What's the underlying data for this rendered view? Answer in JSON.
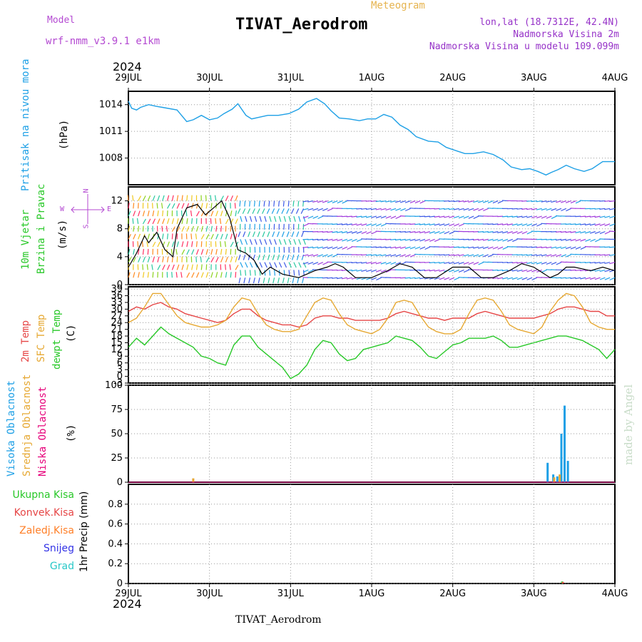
{
  "header": {
    "model_label": "Model",
    "model_name": "wrf-nmm_v3.9.1  e1km",
    "title": "TIVAT_Aerodrom",
    "meteogram_label": "Meteogram",
    "lonlat": "lon,lat (18.7312E, 42.4N)",
    "elevation": "Nadmorska Visina 2m",
    "model_elevation": "Nadmorska Visina u modelu 109.099m",
    "year_top": "2024",
    "year_bottom": "2024",
    "footer": "TIVAT_Aerodrom",
    "watermark": "made by Angel"
  },
  "colors": {
    "pressure": "#1ea0e6",
    "temp2m": "#e64646",
    "sfc_temp": "#e6a832",
    "dewpt": "#28c828",
    "wind_speed": "#000000",
    "gust_marker": "#e64646",
    "high_cloud": "#1ea0e6",
    "mid_cloud": "#e6a832",
    "low_cloud": "#e6007a",
    "model_label": "#b44ad2",
    "meteogram_label": "#e6b450",
    "info": "#9632c8",
    "total_precip": "#28c828",
    "conv_precip": "#e64646",
    "frozen_precip": "#ff7f27",
    "snow": "#3232e6",
    "hail": "#28c8c8"
  },
  "axis_labels": {
    "pressure_name": "Pritisak na nivou mora",
    "pressure_unit": "(hPa)",
    "wind_name1": "10m Vjetar",
    "wind_name2": "Brzina i Pravac",
    "wind_unit": "(m/s)",
    "compass_n": "N",
    "compass_s": "S",
    "compass_e": "E",
    "compass_w": "W",
    "temp_name1": "2m Temp",
    "temp_name2": "SFC Temp",
    "temp_name3": "dewpt Temp",
    "temp_unit": "(C)",
    "cloud_name1": "Visoka Oblacnost",
    "cloud_name2": "Srednja Oblacnost",
    "cloud_name3": "Niska Oblacnost",
    "cloud_unit": "(%)",
    "precip_unit": "1hr Precip (mm)",
    "precip_total": "Ukupna Kisa",
    "precip_conv": "Konvek.Kisa",
    "precip_frozen": "Zaledj.Kisa",
    "precip_snow": "Snijeg",
    "precip_hail": "Grad"
  },
  "chart_data": [
    {
      "type": "line",
      "panel": "pressure",
      "x_categories": [
        "29JUL",
        "30JUL",
        "31JUL",
        "1AUG",
        "2AUG",
        "3AUG",
        "4AUG"
      ],
      "ylim": [
        1005,
        1015.5
      ],
      "yticks": [
        1008,
        1011,
        1014
      ],
      "series": [
        {
          "name": "Pritisak na nivou mora",
          "x_days": [
            0,
            0.04,
            0.1,
            0.15,
            0.25,
            0.35,
            0.42,
            0.6,
            0.72,
            0.8,
            0.9,
            1.0,
            1.1,
            1.18,
            1.28,
            1.35,
            1.45,
            1.52,
            1.62,
            1.72,
            1.85,
            1.98,
            2.1,
            2.2,
            2.32,
            2.42,
            2.5,
            2.6,
            2.72,
            2.85,
            2.95,
            3.05,
            3.15,
            3.25,
            3.35,
            3.45,
            3.55,
            3.7,
            3.82,
            3.92,
            4.05,
            4.15,
            4.25,
            4.38,
            4.5,
            4.62,
            4.72,
            4.85,
            4.95,
            5.05,
            5.15,
            5.22,
            5.3,
            5.4,
            5.5,
            5.62,
            5.72,
            5.85,
            6.0
          ],
          "values": [
            1014.4,
            1013.6,
            1013.4,
            1013.7,
            1014.0,
            1013.8,
            1013.7,
            1013.4,
            1012.1,
            1012.3,
            1012.8,
            1012.3,
            1012.5,
            1013.0,
            1013.5,
            1014.1,
            1012.8,
            1012.4,
            1012.6,
            1012.8,
            1012.8,
            1013.0,
            1013.5,
            1014.3,
            1014.7,
            1014.1,
            1013.3,
            1012.5,
            1012.4,
            1012.2,
            1012.4,
            1012.4,
            1012.9,
            1012.6,
            1011.7,
            1011.2,
            1010.4,
            1009.9,
            1009.8,
            1009.2,
            1008.8,
            1008.5,
            1008.5,
            1008.7,
            1008.4,
            1007.8,
            1007.0,
            1006.7,
            1006.8,
            1006.5,
            1006.1,
            1006.4,
            1006.7,
            1007.2,
            1006.8,
            1006.5,
            1006.8,
            1007.6,
            1007.6
          ]
        }
      ]
    },
    {
      "type": "line",
      "panel": "wind",
      "x_categories": [
        "29JUL",
        "30JUL",
        "31JUL",
        "1AUG",
        "2AUG",
        "3AUG",
        "4AUG"
      ],
      "ylim": [
        0,
        14
      ],
      "yticks": [
        0,
        4,
        8,
        12
      ],
      "series": [
        {
          "name": "Brzina",
          "x_days": [
            0,
            0.1,
            0.2,
            0.25,
            0.35,
            0.45,
            0.55,
            0.6,
            0.72,
            0.85,
            0.95,
            1.05,
            1.15,
            1.25,
            1.35,
            1.45,
            1.55,
            1.65,
            1.75,
            1.9,
            2.1,
            2.3,
            2.45,
            2.55,
            2.65,
            2.8,
            3.0,
            3.2,
            3.35,
            3.5,
            3.65,
            3.8,
            4.0,
            4.2,
            4.35,
            4.5,
            4.7,
            4.85,
            5.0,
            5.2,
            5.3,
            5.4,
            5.5,
            5.7,
            5.85,
            6.0
          ],
          "values": [
            2.5,
            4.5,
            7.0,
            6.0,
            7.5,
            5.0,
            4.0,
            8.0,
            11.0,
            11.5,
            10.0,
            11.0,
            12.0,
            9.5,
            5.0,
            4.5,
            3.5,
            1.5,
            2.5,
            1.5,
            1.0,
            2.0,
            2.5,
            3.0,
            2.5,
            1.0,
            1.0,
            2.0,
            3.0,
            2.5,
            1.0,
            1.0,
            2.5,
            2.5,
            1.0,
            1.0,
            2.0,
            3.0,
            2.5,
            1.0,
            1.5,
            2.5,
            2.5,
            2.0,
            2.5,
            2.0
          ]
        }
      ]
    },
    {
      "type": "line",
      "panel": "temperature",
      "x_categories": [
        "29JUL",
        "30JUL",
        "31JUL",
        "1AUG",
        "2AUG",
        "3AUG",
        "4AUG"
      ],
      "ylim": [
        -3,
        40
      ],
      "yticks": [
        -3,
        0,
        3,
        6,
        9,
        12,
        15,
        18,
        21,
        24,
        27,
        30,
        33,
        36,
        39
      ],
      "series": [
        {
          "name": "2m Temp",
          "x_days": [
            0,
            0.1,
            0.2,
            0.3,
            0.4,
            0.5,
            0.6,
            0.7,
            0.8,
            0.9,
            1.0,
            1.1,
            1.2,
            1.3,
            1.4,
            1.5,
            1.6,
            1.7,
            1.8,
            1.9,
            2.0,
            2.1,
            2.2,
            2.3,
            2.4,
            2.5,
            2.6,
            2.7,
            2.8,
            2.9,
            3.0,
            3.1,
            3.2,
            3.3,
            3.4,
            3.5,
            3.6,
            3.7,
            3.8,
            3.9,
            4.0,
            4.1,
            4.2,
            4.3,
            4.4,
            4.5,
            4.6,
            4.7,
            4.8,
            4.9,
            5.0,
            5.1,
            5.2,
            5.3,
            5.4,
            5.5,
            5.6,
            5.7,
            5.8,
            5.9,
            6.0
          ],
          "values": [
            29,
            31,
            30,
            32,
            33,
            31,
            30,
            28,
            27,
            26,
            25,
            24,
            25,
            28,
            30,
            30,
            27,
            25,
            24,
            23,
            23,
            22,
            23,
            26,
            27,
            27,
            26,
            26,
            25,
            25,
            25,
            25,
            26,
            28,
            29,
            28,
            27,
            26,
            26,
            25,
            26,
            26,
            26,
            28,
            29,
            28,
            27,
            26,
            26,
            26,
            26,
            27,
            28,
            30,
            31,
            31,
            30,
            29,
            29,
            27,
            27
          ]
        },
        {
          "name": "SFC Temp",
          "x_days": [
            0,
            0.1,
            0.2,
            0.3,
            0.4,
            0.5,
            0.6,
            0.7,
            0.8,
            0.9,
            1.0,
            1.1,
            1.2,
            1.3,
            1.4,
            1.5,
            1.6,
            1.7,
            1.8,
            1.9,
            2.0,
            2.1,
            2.2,
            2.3,
            2.4,
            2.5,
            2.6,
            2.7,
            2.8,
            2.9,
            3.0,
            3.1,
            3.2,
            3.3,
            3.4,
            3.5,
            3.6,
            3.7,
            3.8,
            3.9,
            4.0,
            4.1,
            4.2,
            4.3,
            4.4,
            4.5,
            4.6,
            4.7,
            4.8,
            4.9,
            5.0,
            5.1,
            5.2,
            5.3,
            5.4,
            5.5,
            5.6,
            5.7,
            5.8,
            5.9,
            6.0
          ],
          "values": [
            24,
            26,
            31,
            37,
            37,
            32,
            27,
            24,
            23,
            22,
            22,
            23,
            25,
            31,
            35,
            34,
            28,
            23,
            21,
            20,
            20,
            21,
            27,
            33,
            35,
            34,
            28,
            23,
            21,
            20,
            19,
            21,
            26,
            33,
            34,
            33,
            27,
            22,
            20,
            19,
            19,
            21,
            28,
            34,
            35,
            34,
            29,
            23,
            21,
            20,
            19,
            22,
            29,
            34,
            37,
            36,
            31,
            24,
            22,
            21,
            21
          ]
        },
        {
          "name": "dewpt Temp",
          "x_days": [
            0,
            0.1,
            0.2,
            0.3,
            0.4,
            0.5,
            0.6,
            0.7,
            0.8,
            0.9,
            1.0,
            1.1,
            1.2,
            1.3,
            1.4,
            1.5,
            1.6,
            1.7,
            1.8,
            1.9,
            2.0,
            2.1,
            2.2,
            2.3,
            2.4,
            2.5,
            2.6,
            2.7,
            2.8,
            2.9,
            3.0,
            3.1,
            3.2,
            3.3,
            3.4,
            3.5,
            3.6,
            3.7,
            3.8,
            3.9,
            4.0,
            4.1,
            4.2,
            4.3,
            4.4,
            4.5,
            4.6,
            4.7,
            4.8,
            4.9,
            5.0,
            5.1,
            5.2,
            5.3,
            5.4,
            5.5,
            5.6,
            5.7,
            5.8,
            5.9,
            6.0
          ],
          "values": [
            13,
            17,
            14,
            18,
            22,
            19,
            17,
            15,
            13,
            9,
            8,
            6,
            5,
            14,
            18,
            18,
            13,
            10,
            7,
            4,
            -1,
            1,
            5,
            12,
            16,
            15,
            10,
            7,
            8,
            12,
            13,
            14,
            15,
            18,
            17,
            16,
            13,
            9,
            8,
            11,
            14,
            15,
            17,
            17,
            17,
            18,
            16,
            13,
            13,
            14,
            15,
            16,
            17,
            18,
            18,
            17,
            16,
            14,
            12,
            8,
            12
          ]
        }
      ]
    },
    {
      "type": "bar",
      "panel": "cloud",
      "x_categories": [
        "29JUL",
        "30JUL",
        "31JUL",
        "1AUG",
        "2AUG",
        "3AUG",
        "4AUG"
      ],
      "ylim": [
        0,
        100
      ],
      "yticks": [
        0,
        25,
        50,
        75,
        100
      ],
      "series": [
        {
          "name": "Visoka Oblacnost",
          "x_days": [
            5.17,
            5.24,
            5.29,
            5.34,
            5.38,
            5.42
          ],
          "values": [
            20,
            8,
            6,
            50,
            79,
            22
          ]
        },
        {
          "name": "Srednja Oblacnost",
          "x_days": [
            0.8,
            5.25,
            5.32
          ],
          "values": [
            4,
            5,
            8
          ]
        },
        {
          "name": "Niska Oblacnost",
          "x_days": [],
          "values": []
        }
      ]
    },
    {
      "type": "bar",
      "panel": "precipitation",
      "x_categories": [
        "29JUL",
        "30JUL",
        "31JUL",
        "1AUG",
        "2AUG",
        "3AUG",
        "4AUG"
      ],
      "ylim": [
        0,
        1.0
      ],
      "yticks": [
        0,
        0.2,
        0.4,
        0.6,
        0.8
      ],
      "series": [
        {
          "name": "Ukupna Kisa",
          "x_days": [
            5.35
          ],
          "values": [
            0.02
          ]
        },
        {
          "name": "Konvek.Kisa",
          "x_days": [
            5.35
          ],
          "values": [
            0.015
          ]
        },
        {
          "name": "Zaledj.Kisa",
          "x_days": [],
          "values": []
        },
        {
          "name": "Snijeg",
          "x_days": [],
          "values": []
        },
        {
          "name": "Grad",
          "x_days": [],
          "values": []
        }
      ]
    }
  ]
}
